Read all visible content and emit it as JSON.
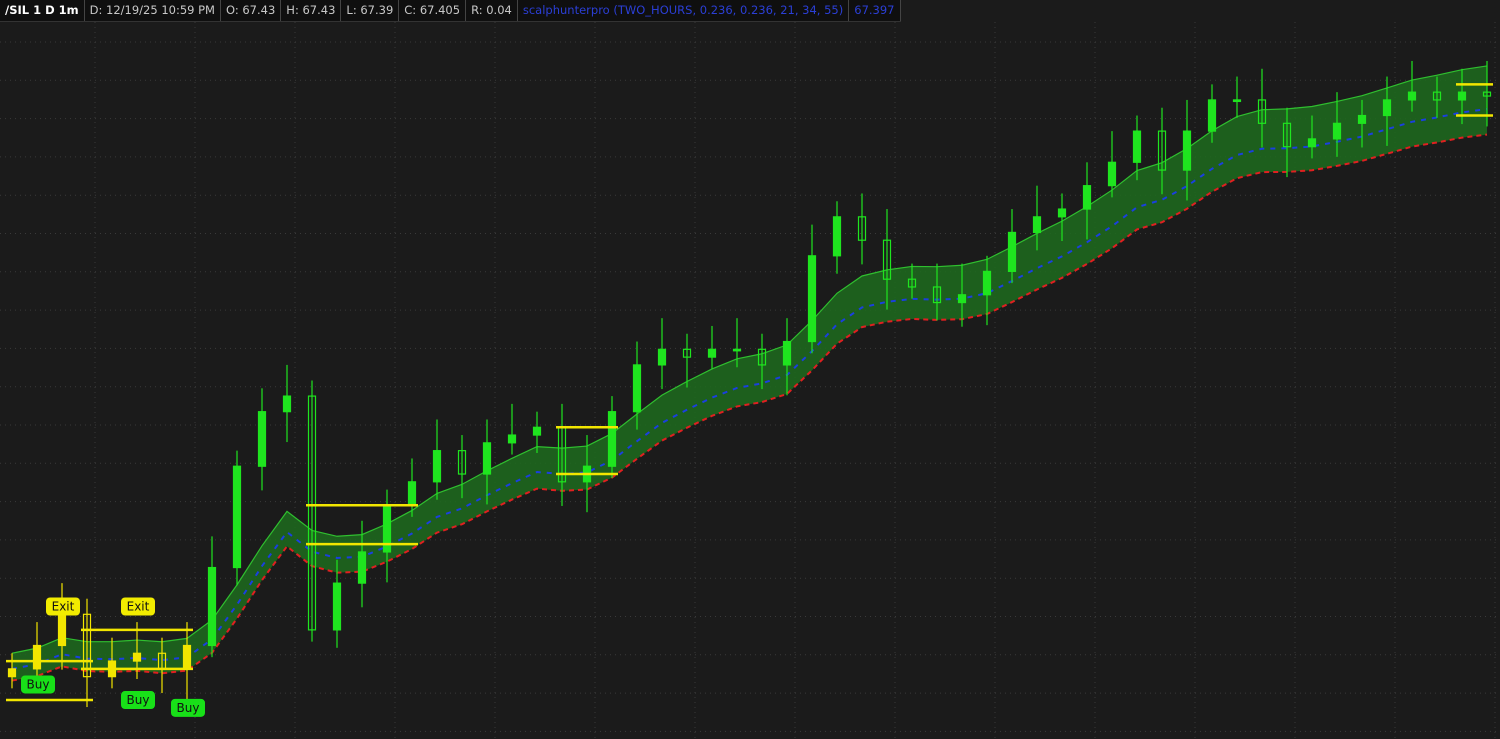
{
  "header": {
    "symbol": "/SIL 1 D 1m",
    "date": "D: 12/19/25 10:59 PM",
    "open": "O: 67.43",
    "high": "H: 67.43",
    "low": "L: 67.39",
    "close": "C: 67.405",
    "range": "R: 0.04",
    "study": "scalphunterpro (TWO_HOURS, 0.236, 0.236, 21, 34, 55)",
    "study_value": "67.397"
  },
  "colors": {
    "background": "#1b1b1b",
    "up_candle": "#1fe51f",
    "signal_candle": "#f2e600",
    "band_fill": "#1d6b1d",
    "band_upper": "#2fbf2f",
    "mid_line": "#1a3fe0",
    "lower_line": "#e02020",
    "level_line": "#f2e600",
    "buy_label": "#18e018",
    "exit_label": "#f2ec00"
  },
  "chart_data": {
    "type": "candlestick",
    "grid": true,
    "ylim": [
      66.58,
      67.5
    ],
    "closes": [
      66.67,
      66.7,
      66.74,
      66.66,
      66.68,
      66.69,
      66.67,
      66.7,
      66.8,
      66.93,
      67.0,
      67.02,
      66.72,
      66.78,
      66.82,
      66.88,
      66.91,
      66.95,
      66.92,
      66.96,
      66.97,
      66.98,
      66.91,
      66.93,
      67.0,
      67.06,
      67.08,
      67.07,
      67.08,
      67.08,
      67.06,
      67.09,
      67.2,
      67.25,
      67.22,
      67.17,
      67.16,
      67.14,
      67.15,
      67.18,
      67.23,
      67.25,
      67.26,
      67.29,
      67.32,
      67.36,
      67.31,
      67.36,
      67.4,
      67.4,
      67.37,
      67.34,
      67.35,
      67.37,
      67.38,
      67.4,
      67.41,
      67.4,
      67.41,
      67.405
    ],
    "signal_candles_through": 7,
    "levels": [
      {
        "from": 0,
        "to": 3,
        "value": 66.68
      },
      {
        "from": 0,
        "to": 3,
        "value": 66.63
      },
      {
        "from": 3,
        "to": 7,
        "value": 66.72
      },
      {
        "from": 3,
        "to": 7,
        "value": 66.67
      },
      {
        "from": 12,
        "to": 16,
        "value": 66.88
      },
      {
        "from": 12,
        "to": 16,
        "value": 66.83
      },
      {
        "from": 22,
        "to": 24,
        "value": 66.98
      },
      {
        "from": 22,
        "to": 24,
        "value": 66.92
      },
      {
        "from": 58,
        "to": 59,
        "value": 67.42
      },
      {
        "from": 58,
        "to": 59,
        "value": 67.38
      }
    ],
    "annotations": [
      {
        "text": "Buy",
        "index": 1,
        "value": 66.65,
        "kind": "buy"
      },
      {
        "text": "Exit",
        "index": 2,
        "value": 66.75,
        "kind": "exit"
      },
      {
        "text": "Buy",
        "index": 5,
        "value": 66.63,
        "kind": "buy"
      },
      {
        "text": "Exit",
        "index": 5,
        "value": 66.75,
        "kind": "exit"
      },
      {
        "text": "Buy",
        "index": 7,
        "value": 66.62,
        "kind": "buy"
      }
    ]
  }
}
